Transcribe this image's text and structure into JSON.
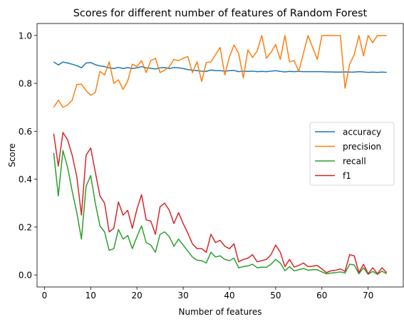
{
  "chart_data": {
    "type": "line",
    "title": "Scores for different number of features of Random Forest",
    "xlabel": "Number of features",
    "ylabel": "Score",
    "xlim": [
      -1.6,
      77.6
    ],
    "ylim": [
      -0.05,
      1.05
    ],
    "x_ticks": [
      0,
      10,
      20,
      30,
      40,
      50,
      60,
      70
    ],
    "y_ticks": [
      0.0,
      0.2,
      0.4,
      0.6,
      0.8,
      1.0
    ],
    "y_tick_labels": [
      "0.0",
      "0.2",
      "0.4",
      "0.6",
      "0.8",
      "1.0"
    ],
    "grid": false,
    "legend": "center-right",
    "x": [
      2,
      3,
      4,
      5,
      6,
      7,
      8,
      9,
      10,
      11,
      12,
      13,
      14,
      15,
      16,
      17,
      18,
      19,
      20,
      21,
      22,
      23,
      24,
      25,
      26,
      27,
      28,
      29,
      30,
      31,
      32,
      33,
      34,
      35,
      36,
      37,
      38,
      39,
      40,
      41,
      42,
      43,
      44,
      45,
      46,
      47,
      48,
      49,
      50,
      51,
      52,
      53,
      54,
      55,
      56,
      57,
      58,
      59,
      60,
      61,
      62,
      63,
      64,
      65,
      66,
      67,
      68,
      69,
      70,
      71,
      72,
      73,
      74
    ],
    "series": [
      {
        "name": "accuracy",
        "color": "#1f77b4",
        "values": [
          0.89,
          0.877,
          0.889,
          0.885,
          0.88,
          0.874,
          0.865,
          0.885,
          0.887,
          0.878,
          0.873,
          0.87,
          0.865,
          0.862,
          0.867,
          0.862,
          0.866,
          0.862,
          0.865,
          0.87,
          0.865,
          0.863,
          0.86,
          0.865,
          0.866,
          0.862,
          0.866,
          0.865,
          0.862,
          0.858,
          0.855,
          0.853,
          0.851,
          0.85,
          0.856,
          0.853,
          0.853,
          0.851,
          0.853,
          0.854,
          0.849,
          0.851,
          0.85,
          0.851,
          0.849,
          0.85,
          0.849,
          0.851,
          0.853,
          0.85,
          0.848,
          0.85,
          0.849,
          0.85,
          0.849,
          0.849,
          0.849,
          0.849,
          0.849,
          0.848,
          0.848,
          0.847,
          0.847,
          0.848,
          0.847,
          0.847,
          0.849,
          0.848,
          0.846,
          0.847,
          0.846,
          0.847,
          0.846
        ]
      },
      {
        "name": "precision",
        "color": "#ff7f0e",
        "values": [
          0.7,
          0.73,
          0.7,
          0.71,
          0.73,
          0.795,
          0.797,
          0.77,
          0.75,
          0.762,
          0.85,
          0.835,
          0.89,
          0.8,
          0.815,
          0.775,
          0.81,
          0.88,
          0.87,
          0.895,
          0.845,
          0.895,
          0.905,
          0.845,
          0.855,
          0.87,
          0.9,
          0.895,
          0.905,
          0.912,
          0.845,
          0.89,
          0.808,
          0.887,
          0.89,
          0.92,
          0.95,
          0.835,
          0.91,
          0.96,
          0.925,
          0.823,
          0.94,
          0.908,
          0.935,
          1.0,
          0.905,
          0.93,
          0.962,
          0.9,
          1.0,
          0.89,
          0.895,
          0.85,
          0.925,
          1.0,
          0.95,
          0.9,
          1.0,
          1.0,
          1.0,
          1.0,
          1.0,
          0.78,
          0.88,
          0.92,
          1.0,
          0.915,
          1.0,
          0.97,
          1.0,
          1.0,
          1.0
        ]
      },
      {
        "name": "recall",
        "color": "#2ca02c",
        "values": [
          0.51,
          0.33,
          0.52,
          0.45,
          0.35,
          0.26,
          0.15,
          0.37,
          0.415,
          0.3,
          0.205,
          0.18,
          0.103,
          0.11,
          0.19,
          0.15,
          0.165,
          0.11,
          0.16,
          0.205,
          0.135,
          0.125,
          0.095,
          0.17,
          0.18,
          0.16,
          0.12,
          0.15,
          0.125,
          0.1,
          0.075,
          0.062,
          0.06,
          0.05,
          0.095,
          0.075,
          0.08,
          0.065,
          0.06,
          0.07,
          0.03,
          0.035,
          0.038,
          0.045,
          0.03,
          0.033,
          0.032,
          0.045,
          0.065,
          0.05,
          0.018,
          0.035,
          0.017,
          0.022,
          0.027,
          0.02,
          0.022,
          0.022,
          0.013,
          0.005,
          0.008,
          0.01,
          0.013,
          0.008,
          0.045,
          0.042,
          0.005,
          0.03,
          0.003,
          0.015,
          0.003,
          0.016,
          0.005
        ]
      },
      {
        "name": "f1",
        "color": "#d62728",
        "values": [
          0.59,
          0.455,
          0.595,
          0.565,
          0.5,
          0.41,
          0.25,
          0.5,
          0.53,
          0.43,
          0.33,
          0.3,
          0.18,
          0.195,
          0.305,
          0.25,
          0.27,
          0.195,
          0.275,
          0.335,
          0.23,
          0.225,
          0.17,
          0.285,
          0.3,
          0.27,
          0.215,
          0.26,
          0.215,
          0.175,
          0.13,
          0.11,
          0.11,
          0.095,
          0.17,
          0.135,
          0.145,
          0.12,
          0.11,
          0.13,
          0.055,
          0.065,
          0.07,
          0.085,
          0.055,
          0.06,
          0.065,
          0.085,
          0.125,
          0.095,
          0.035,
          0.065,
          0.033,
          0.04,
          0.05,
          0.035,
          0.037,
          0.04,
          0.025,
          0.01,
          0.018,
          0.02,
          0.025,
          0.015,
          0.085,
          0.08,
          0.01,
          0.045,
          0.005,
          0.03,
          0.005,
          0.03,
          0.01
        ]
      }
    ]
  }
}
